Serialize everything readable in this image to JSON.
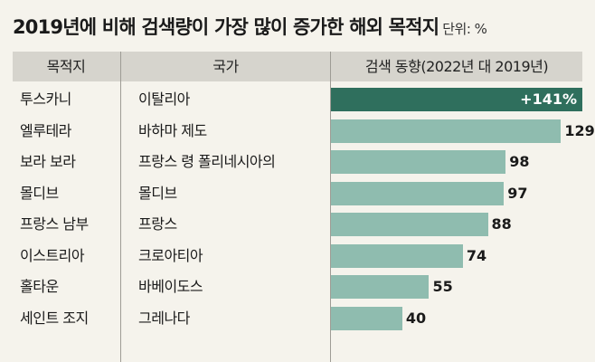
{
  "title": "2019년에 비해 검색량이 가장 많이 증가한 해외 목적지",
  "unit": "단위: %",
  "columns": [
    "목적지",
    "국가",
    "검색 동향(2022년 대 2019년)"
  ],
  "chart_data": {
    "type": "bar",
    "orientation": "horizontal",
    "title": "2019년에 비해 검색량이 가장 많이 증가한 해외 목적지",
    "unit": "%",
    "categories": [
      "투스카니",
      "엘루테라",
      "보라 보라",
      "몰디브",
      "프랑스 남부",
      "이스트리아",
      "홀타운",
      "세인트 조지"
    ],
    "countries": [
      "이탈리아",
      "바하마 제도",
      "프랑스 령 폴리네시아의",
      "몰디브",
      "프랑스",
      "크로아티아",
      "바베이도스",
      "그레나다"
    ],
    "values": [
      141,
      129,
      98,
      97,
      88,
      74,
      55,
      40
    ],
    "value_labels": [
      "+141%",
      "129",
      "98",
      "97",
      "88",
      "74",
      "55",
      "40"
    ],
    "highlight_index": 0,
    "xlim": [
      0,
      141
    ],
    "colors": {
      "highlight": "#2f6f5d",
      "bar": "#8fbcaf"
    }
  }
}
